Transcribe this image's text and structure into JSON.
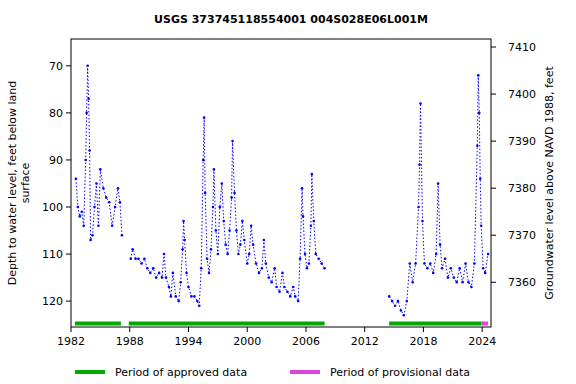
{
  "chart_data": {
    "type": "line",
    "title": "USGS 373745118554001 004S028E06L001M",
    "y_label": "Depth to water level, feet below land\nsurface",
    "y2_label": "Groundwater level above NAVD 1988, feet",
    "xlim": [
      1982,
      2024.9
    ],
    "xticks": [
      1982,
      1988,
      1994,
      2000,
      2006,
      2012,
      2018,
      2024
    ],
    "ylim": [
      125.5,
      64.3
    ],
    "yticks": [
      70,
      80,
      90,
      100,
      110,
      120
    ],
    "y2lim": [
      7350.5,
      7411.7
    ],
    "y2ticks": [
      7360,
      7370,
      7380,
      7390,
      7400,
      7410
    ],
    "grid": false,
    "legend": "bottom",
    "series": [
      {
        "color": "#0000ff",
        "marker": "dot",
        "line_style": "dotted",
        "x": [
          1982.5,
          1982.7,
          1982.9,
          1983.1,
          1983.3,
          1983.5,
          1983.6,
          1983.7,
          1983.8,
          1983.9,
          1984.0,
          1984.2,
          1984.4,
          1984.6,
          1984.8,
          1985.0,
          1985.3,
          1985.6,
          1985.9,
          1986.2,
          1986.5,
          1986.8,
          1987.0,
          1987.2,
          null,
          1988.1,
          1988.3,
          1988.6,
          1988.9,
          1989.2,
          1989.5,
          1989.8,
          1990.1,
          1990.4,
          1990.7,
          1991.0,
          1991.3,
          1991.5,
          1991.7,
          1992.0,
          1992.2,
          1992.4,
          1992.7,
          1993.0,
          1993.2,
          1993.4,
          1993.5,
          1993.6,
          1993.8,
          1994.0,
          1994.3,
          1994.6,
          1994.9,
          1995.1,
          1995.3,
          1995.5,
          1995.6,
          1995.7,
          1995.9,
          1996.1,
          1996.3,
          1996.5,
          1996.6,
          1996.8,
          1997.0,
          1997.2,
          1997.4,
          1997.6,
          1997.8,
          1998.0,
          1998.2,
          1998.4,
          1998.5,
          1998.7,
          1998.9,
          1999.1,
          1999.3,
          1999.5,
          1999.7,
          2000.0,
          2000.2,
          2000.4,
          2000.6,
          2000.9,
          2001.2,
          2001.5,
          2001.7,
          2001.9,
          2002.2,
          2002.5,
          2002.8,
          2003.0,
          2003.3,
          2003.6,
          2003.8,
          2004.1,
          2004.4,
          2004.7,
          2004.9,
          2005.2,
          2005.4,
          2005.6,
          2005.7,
          2005.9,
          2006.1,
          2006.3,
          2006.5,
          2006.6,
          2006.8,
          2007.0,
          2007.3,
          2007.6,
          2007.9,
          null,
          2014.5,
          2014.8,
          2015.1,
          2015.4,
          2015.7,
          2016.0,
          2016.3,
          2016.6,
          2016.9,
          2017.2,
          2017.5,
          2017.6,
          2017.7,
          2017.9,
          2018.1,
          2018.4,
          2018.7,
          2019.0,
          2019.3,
          2019.5,
          2019.7,
          2019.9,
          2020.2,
          2020.5,
          2020.8,
          2021.1,
          2021.4,
          2021.7,
          2022.0,
          2022.3,
          2022.6,
          2022.9,
          2023.2,
          2023.5,
          2023.6,
          2023.7,
          2023.8,
          2023.9,
          2024.1,
          2024.3,
          2024.6
        ],
        "values": [
          94,
          100,
          102,
          101,
          104,
          90,
          80,
          70,
          77,
          88,
          107,
          106,
          100,
          95,
          104,
          92,
          96,
          98,
          99,
          104,
          100,
          96,
          99,
          106,
          null,
          111,
          109,
          111,
          111,
          112,
          111,
          113,
          114,
          113,
          115,
          114,
          115,
          110,
          115,
          117,
          119,
          114,
          119,
          120,
          116,
          109,
          103,
          107,
          114,
          117,
          119,
          119,
          120,
          121,
          113,
          90,
          81,
          97,
          111,
          114,
          109,
          100,
          92,
          105,
          110,
          100,
          95,
          103,
          108,
          110,
          105,
          98,
          86,
          97,
          105,
          110,
          108,
          103,
          107,
          112,
          110,
          104,
          108,
          112,
          114,
          113,
          107,
          112,
          115,
          116,
          113,
          117,
          118,
          114,
          117,
          118,
          119,
          117,
          119,
          120,
          111,
          96,
          102,
          110,
          113,
          112,
          104,
          93,
          103,
          110,
          111,
          112,
          113,
          null,
          119,
          120,
          121,
          120,
          122,
          123,
          120,
          112,
          116,
          112,
          100,
          91,
          78,
          103,
          112,
          113,
          112,
          114,
          110,
          95,
          108,
          113,
          111,
          115,
          113,
          115,
          116,
          113,
          116,
          112,
          116,
          117,
          112,
          87,
          72,
          80,
          94,
          104,
          113,
          114,
          110
        ]
      }
    ],
    "periods": [
      {
        "name": "Period of approved data",
        "color": "#00aa00",
        "ranges": [
          [
            1982.4,
            1987.1
          ],
          [
            1987.9,
            2007.9
          ],
          [
            2014.5,
            2023.9
          ]
        ]
      },
      {
        "name": "Period of provisional data",
        "color": "#dd44dd",
        "ranges": [
          [
            2023.9,
            2024.6
          ]
        ]
      }
    ]
  }
}
